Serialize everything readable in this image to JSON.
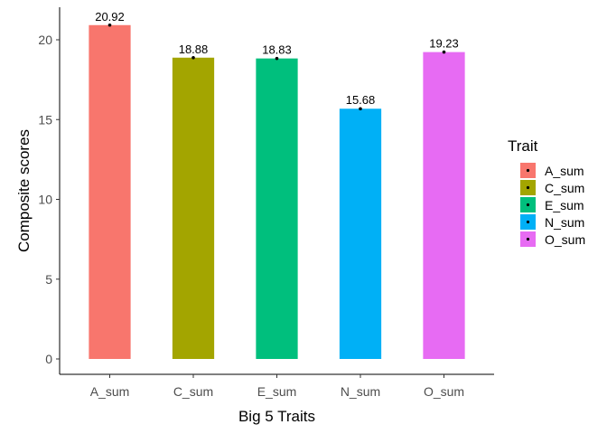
{
  "chart_data": {
    "type": "bar",
    "categories": [
      "A_sum",
      "C_sum",
      "E_sum",
      "N_sum",
      "O_sum"
    ],
    "values": [
      20.92,
      18.88,
      18.83,
      15.68,
      19.23
    ],
    "data_labels": [
      "20.92",
      "18.88",
      "18.83",
      "15.68",
      "19.23"
    ],
    "colors": [
      "#F8766D",
      "#A3A500",
      "#00BF7D",
      "#00B0F6",
      "#E76BF3"
    ],
    "xlabel": "Big 5 Traits",
    "ylabel": "Composite scores",
    "ylim": [
      0,
      21.9
    ],
    "y_ticks": [
      0,
      5,
      10,
      15,
      20
    ],
    "grid": false,
    "point_markers": true,
    "legend": {
      "title": "Trait",
      "placement": "right",
      "items": [
        "A_sum",
        "C_sum",
        "E_sum",
        "N_sum",
        "O_sum"
      ]
    }
  }
}
